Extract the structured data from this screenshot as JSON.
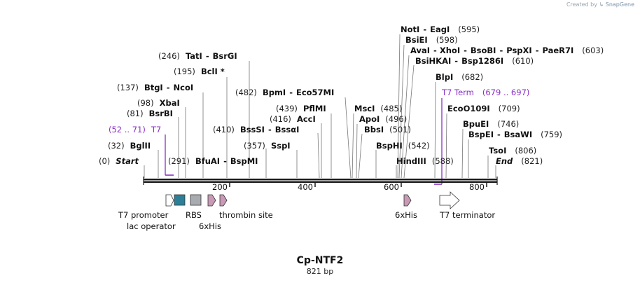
{
  "credit": {
    "prefix": "Created by",
    "brand": "SnapGene"
  },
  "plasmid": {
    "name": "Cp-NTF2",
    "length_label": "821 bp"
  },
  "axis": {
    "ticks": [
      "200",
      "400",
      "600",
      "800"
    ]
  },
  "sites": [
    {
      "pos": "(0)",
      "a": "Start",
      "italic": true
    },
    {
      "pos": "(32)",
      "a": "BglII"
    },
    {
      "pos": "(81)",
      "a": "BsrBI"
    },
    {
      "pos": "(98)",
      "a": "XbaI"
    },
    {
      "pos": "(137)",
      "a": "BtgI",
      "b": "NcoI"
    },
    {
      "pos": "(195)",
      "a": "BclI *"
    },
    {
      "pos": "(246)",
      "a": "TatI",
      "b": "BsrGI"
    },
    {
      "pos": "(291)",
      "a": "BfuAI",
      "b": "BspMI"
    },
    {
      "pos": "(357)",
      "a": "SspI"
    },
    {
      "pos": "(410)",
      "a": "BssSI",
      "b": "BssαI"
    },
    {
      "pos": "(416)",
      "a": "AccI"
    },
    {
      "pos": "(439)",
      "a": "PflMI"
    },
    {
      "pos": "(482)",
      "a": "BpmI",
      "b": "Eco57MI"
    },
    {
      "pos": "(485)",
      "a": "MscI"
    },
    {
      "pos": "(496)",
      "a": "ApoI"
    },
    {
      "pos": "(501)",
      "a": "BbsI"
    },
    {
      "pos": "(542)",
      "a": "BspHI"
    },
    {
      "pos": "(588)",
      "a": "HindIII"
    },
    {
      "pos": "(595)",
      "a": "NotI",
      "b": "EagI"
    },
    {
      "pos": "(598)",
      "a": "BsiEI"
    },
    {
      "pos": "(603)",
      "a": "AvaI",
      "b": "XhoI",
      "c": "BsoBI",
      "d": "PspXI",
      "e": "PaeR7I"
    },
    {
      "pos": "(610)",
      "a": "BsiHKAI",
      "b": "Bsp1286I"
    },
    {
      "pos": "(682)",
      "a": "BlpI"
    },
    {
      "pos": "(709)",
      "a": "EcoO109I"
    },
    {
      "pos": "(746)",
      "a": "BpuEI"
    },
    {
      "pos": "(759)",
      "a": "BspEI",
      "b": "BsaWI"
    },
    {
      "pos": "(806)",
      "a": "TsoI"
    },
    {
      "pos": "(821)",
      "a": "End",
      "italic": true
    }
  ],
  "primers": [
    {
      "range": "(52 .. 71)",
      "name": "T7"
    },
    {
      "name": "T7 Term",
      "range": "(679 .. 697)"
    }
  ],
  "features": {
    "t7_promoter": "T7 promoter",
    "lac_operator": "lac operator",
    "rbs": "RBS",
    "his_left": "6xHis",
    "thrombin": "thrombin site",
    "his_right": "6xHis",
    "t7_terminator": "T7 terminator"
  },
  "colors": {
    "primer": "#8a2fc4",
    "lac": "#2c7f96",
    "rbs": "#a8abb0",
    "tag": "#c99ab5"
  }
}
